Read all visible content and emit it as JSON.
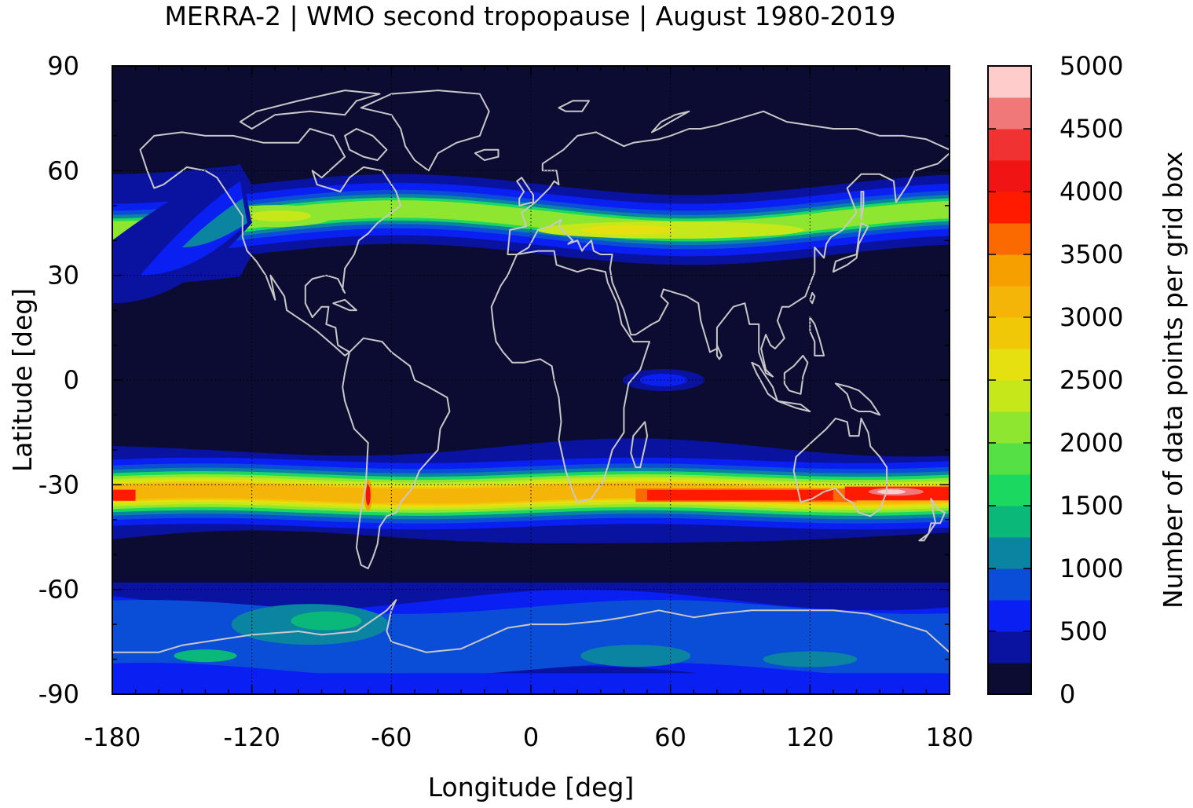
{
  "chart_data": {
    "type": "heatmap",
    "title": "MERRA-2 | WMO second tropopause | August 1980-2019",
    "xlabel": "Longitude [deg]",
    "ylabel": "Latitude [deg]",
    "xlim": [
      -180,
      180
    ],
    "ylim": [
      -90,
      90
    ],
    "x_ticks": [
      "-180",
      "-120",
      "-60",
      "0",
      "60",
      "120",
      "180"
    ],
    "y_ticks": [
      "90",
      "60",
      "30",
      "0",
      "-30",
      "-60",
      "-90"
    ],
    "colorbar": {
      "label": "Number of data points per grid box",
      "range": [
        0,
        5000
      ],
      "ticks": [
        "0",
        "500",
        "1000",
        "1500",
        "2000",
        "2500",
        "3000",
        "3500",
        "4000",
        "4500",
        "5000"
      ],
      "levels": [
        {
          "from": 0,
          "to": 250,
          "color": "#0c0c33"
        },
        {
          "from": 250,
          "to": 500,
          "color": "#0a12a0"
        },
        {
          "from": 500,
          "to": 750,
          "color": "#0a1ff2"
        },
        {
          "from": 750,
          "to": 1000,
          "color": "#0a4dd6"
        },
        {
          "from": 1000,
          "to": 1250,
          "color": "#0a84a0"
        },
        {
          "from": 1250,
          "to": 1500,
          "color": "#0ab87a"
        },
        {
          "from": 1500,
          "to": 1750,
          "color": "#1ad860"
        },
        {
          "from": 1750,
          "to": 2000,
          "color": "#55e045"
        },
        {
          "from": 2000,
          "to": 2250,
          "color": "#8ee630"
        },
        {
          "from": 2250,
          "to": 2500,
          "color": "#c6e81a"
        },
        {
          "from": 2500,
          "to": 2750,
          "color": "#e6e010"
        },
        {
          "from": 2750,
          "to": 3000,
          "color": "#f0c808"
        },
        {
          "from": 3000,
          "to": 3250,
          "color": "#f5b408"
        },
        {
          "from": 3250,
          "to": 3500,
          "color": "#f5a000"
        },
        {
          "from": 3500,
          "to": 3750,
          "color": "#fa6a00"
        },
        {
          "from": 3750,
          "to": 4000,
          "color": "#ff1a00"
        },
        {
          "from": 4000,
          "to": 4250,
          "color": "#f01414"
        },
        {
          "from": 4250,
          "to": 4500,
          "color": "#f03232"
        },
        {
          "from": 4500,
          "to": 4750,
          "color": "#f07878"
        },
        {
          "from": 4750,
          "to": 5000,
          "color": "#ffcccc"
        }
      ]
    },
    "features": [
      {
        "name": "northern-midlatitude-band",
        "lat_center": 45,
        "lon_range": [
          -180,
          180
        ],
        "peak_value": 2600
      },
      {
        "name": "southern-subtropical-band",
        "lat_center": -32,
        "lon_range": [
          -180,
          180
        ],
        "peak_value": 4800
      },
      {
        "name": "equatorial-patch",
        "lat_center": 0,
        "lon_center": 55,
        "peak_value": 600
      },
      {
        "name": "antarctic-region",
        "lat_range": [
          -90,
          -62
        ],
        "peak_value": 1500
      }
    ],
    "grid": "dotted",
    "coastlines": true
  },
  "colors": {
    "background": "#0c0c33",
    "coastline": "#c8c8c8"
  }
}
